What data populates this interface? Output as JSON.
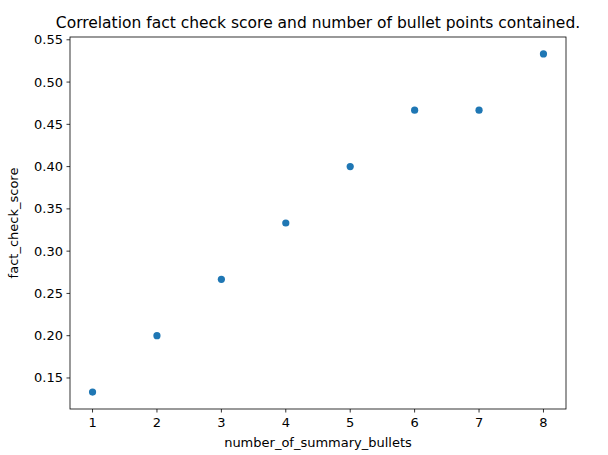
{
  "chart_data": {
    "type": "scatter",
    "title": "Correlation fact check score and number of bullet points contained.",
    "x_label": "number_of_summary_bullets",
    "y_label": "fact_check_score",
    "x": [
      1,
      2,
      3,
      4,
      5,
      6,
      7,
      8
    ],
    "values": [
      0.1333,
      0.2,
      0.2667,
      0.3333,
      0.4,
      0.4667,
      0.4667,
      0.5333
    ],
    "color": "#1f77b4",
    "marker": "circle",
    "xlim": [
      0.65,
      8.35
    ],
    "ylim": [
      0.1133,
      0.5533
    ],
    "xticks": [
      1,
      2,
      3,
      4,
      5,
      6,
      7,
      8
    ],
    "yticks": [
      0.15,
      {
        "value": 0.2,
        "label": "0.20"
      },
      0.25,
      {
        "value": 0.3,
        "label": "0.30"
      },
      0.35,
      {
        "value": 0.4,
        "label": "0.40"
      },
      0.45,
      {
        "value": 0.5,
        "label": "0.50"
      },
      0.55
    ],
    "grid": false
  }
}
